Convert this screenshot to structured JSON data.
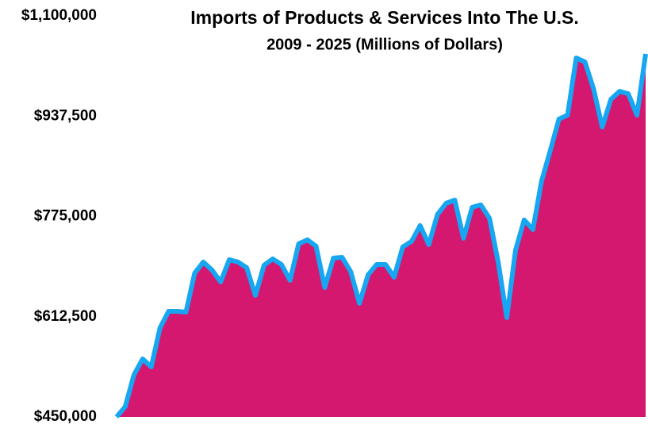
{
  "chart_data": {
    "type": "area",
    "title": "Imports of Products & Services Into The U.S.",
    "subtitle": "2009 - 2025 (Millions of Dollars)",
    "values": [
      450000,
      466700,
      518200,
      544000,
      531100,
      594200,
      621200,
      621200,
      619900,
      683000,
      701000,
      688100,
      668800,
      704800,
      701000,
      692000,
      646900,
      695800,
      706100,
      697100,
      671400,
      730600,
      737000,
      726700,
      659800,
      707400,
      708700,
      685500,
      634100,
      680400,
      697100,
      697100,
      676500,
      725400,
      734400,
      760200,
      729300,
      778200,
      796200,
      801400,
      739600,
      789800,
      793700,
      771800,
      701000,
      610900,
      720300,
      769200,
      753800,
      832300,
      881200,
      932700,
      939100,
      1031800,
      1025300,
      981600,
      919800,
      964800,
      977700,
      973900,
      939100,
      1038200
    ],
    "color": "#d4186f",
    "line_color": "#16a6f2",
    "ylim": [
      450000,
      1100000
    ],
    "yticks": [
      {
        "value": 450000,
        "label": "$450,000"
      },
      {
        "value": 612500,
        "label": "$612,500"
      },
      {
        "value": 775000,
        "label": "$775,000"
      },
      {
        "value": 937500,
        "label": "$937,500"
      },
      {
        "value": 1100000,
        "label": "$1,100,000"
      }
    ],
    "grid": false
  }
}
